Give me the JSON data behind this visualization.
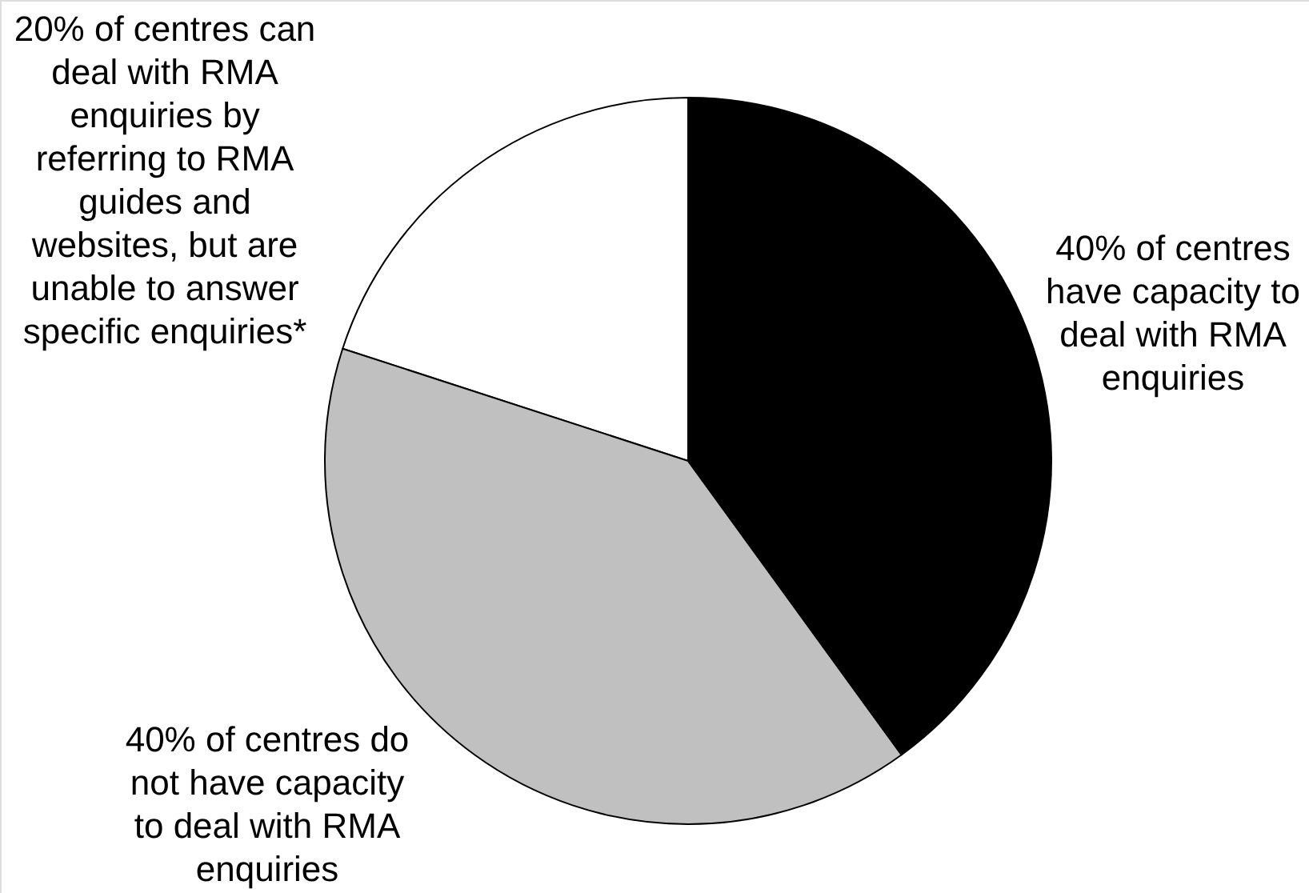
{
  "chart_data": {
    "type": "pie",
    "categories": [
      "20% of centres can deal with RMA enquiries by referring to RMA guides and websites, but are unable to answer specific enquiries*",
      "40% of centres do not have capacity to deal with RMA enquiries",
      "40% of centres have capacity to deal with RMA enquiries"
    ],
    "values": [
      20,
      40,
      40
    ],
    "colors": [
      "#ffffff",
      "#c0c0c0",
      "#000000"
    ]
  }
}
